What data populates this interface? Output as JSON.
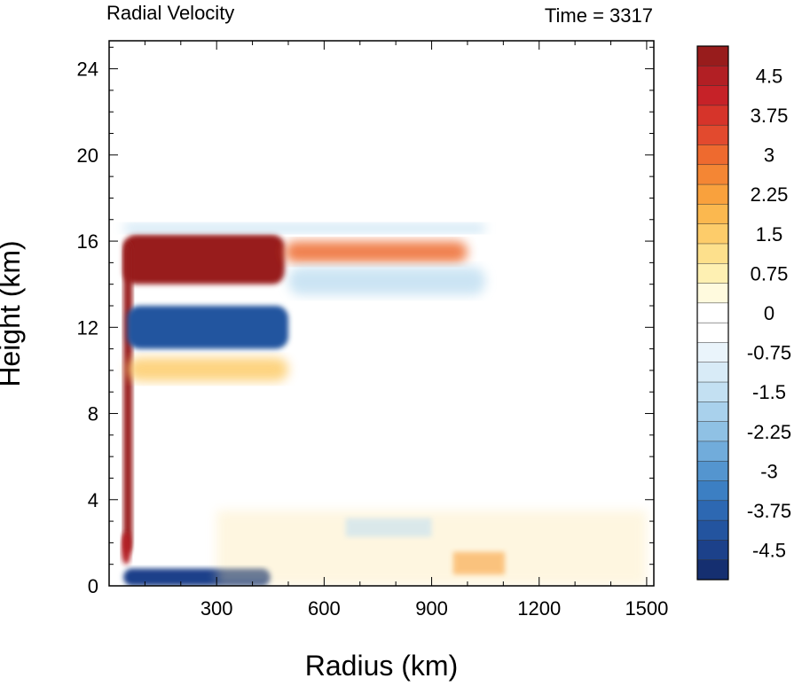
{
  "chart_data": {
    "type": "heatmap",
    "title": "Radial Velocity",
    "subtitle": "Time = 3317",
    "xlabel": "Radius (km)",
    "ylabel": "Height (km)",
    "xlim": [
      0,
      1520
    ],
    "ylim": [
      0,
      25.3
    ],
    "x_ticks": [
      300,
      600,
      900,
      1200,
      1500
    ],
    "y_ticks": [
      0,
      4,
      8,
      12,
      16,
      20,
      24
    ],
    "colorbar": {
      "labels": [
        "4.5",
        "3.75",
        "3",
        "2.25",
        "1.5",
        "0.75",
        "0",
        "-0.75",
        "-1.5",
        "-2.25",
        "-3",
        "-3.75",
        "-4.5"
      ],
      "label_values": [
        4.5,
        3.75,
        3,
        2.25,
        1.5,
        0.75,
        0,
        -0.75,
        -1.5,
        -2.25,
        -3,
        -3.75,
        -4.5
      ],
      "colors_top_to_bottom": [
        "#981c1c",
        "#b21f24",
        "#c62228",
        "#d6342a",
        "#e24a2e",
        "#ee6a2f",
        "#f48634",
        "#f9a13d",
        "#fbb84f",
        "#fdcc6a",
        "#fde08c",
        "#fef0b2",
        "#fffade",
        "#ffffff",
        "#ffffff",
        "#eaf4fb",
        "#d8ebf7",
        "#c3e0f2",
        "#a9d1ec",
        "#8fc1e4",
        "#71acdb",
        "#5495cf",
        "#3c7fc3",
        "#2d68b2",
        "#23549f",
        "#1c418a",
        "#152f70"
      ]
    },
    "features": [
      {
        "name": "strong outflow layer",
        "sign": "positive",
        "value": 5.0,
        "r": [
          40,
          490
        ],
        "z": [
          14.0,
          16.3
        ]
      },
      {
        "name": "outflow extension",
        "sign": "positive",
        "value": 3.0,
        "r": [
          490,
          1000
        ],
        "z": [
          15.0,
          16.0
        ]
      },
      {
        "name": "eyewall outflow column",
        "sign": "positive",
        "value": 5.0,
        "r": [
          40,
          65
        ],
        "z": [
          1.5,
          16.0
        ]
      },
      {
        "name": "inflow below outflow",
        "sign": "negative",
        "value": -4.0,
        "r": [
          50,
          500
        ],
        "z": [
          11.0,
          13.0
        ]
      },
      {
        "name": "upper-level inflow",
        "sign": "negative",
        "value": -1.5,
        "r": [
          40,
          1050
        ],
        "z": [
          16.4,
          16.8
        ]
      },
      {
        "name": "secondary upper inflow",
        "sign": "negative",
        "value": -1.5,
        "r": [
          500,
          1050
        ],
        "z": [
          13.5,
          14.8
        ]
      },
      {
        "name": "mid-level outflow band",
        "sign": "positive",
        "value": 1.5,
        "r": [
          50,
          500
        ],
        "z": [
          9.5,
          10.6
        ]
      },
      {
        "name": "boundary layer inflow",
        "sign": "negative",
        "value": -4.5,
        "r": [
          40,
          450
        ],
        "z": [
          0,
          0.8
        ]
      },
      {
        "name": "low-level eyewall outflow",
        "sign": "positive",
        "value": 4.5,
        "r": [
          35,
          60
        ],
        "z": [
          1.0,
          2.5
        ]
      },
      {
        "name": "low-level mixed features",
        "sign": "mixed",
        "value": 1.0,
        "r": [
          300,
          1500
        ],
        "z": [
          0,
          3.5
        ]
      }
    ]
  }
}
